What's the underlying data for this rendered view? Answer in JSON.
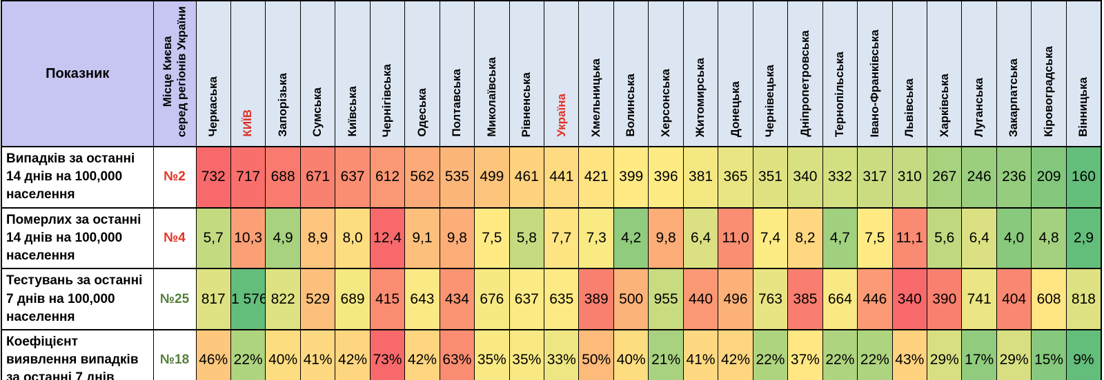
{
  "table": {
    "indicator_header": "Показник",
    "rank_header": "Місце Києва\nсеред регіонів України",
    "columns": [
      {
        "label": "Черкаська",
        "highlight": false
      },
      {
        "label": "КИЇВ",
        "highlight": true
      },
      {
        "label": "Запорізька",
        "highlight": false
      },
      {
        "label": "Сумська",
        "highlight": false
      },
      {
        "label": "Київська",
        "highlight": false
      },
      {
        "label": "Чернігівська",
        "highlight": false
      },
      {
        "label": "Одеська",
        "highlight": false
      },
      {
        "label": "Полтавська",
        "highlight": false
      },
      {
        "label": "Миколаївська",
        "highlight": false
      },
      {
        "label": "Рівненська",
        "highlight": false
      },
      {
        "label": "Україна",
        "highlight": true
      },
      {
        "label": "Хмельницька",
        "highlight": false
      },
      {
        "label": "Волинська",
        "highlight": false
      },
      {
        "label": "Херсонська",
        "highlight": false
      },
      {
        "label": "Житомирська",
        "highlight": false
      },
      {
        "label": "Донецька",
        "highlight": false
      },
      {
        "label": "Чернівецька",
        "highlight": false
      },
      {
        "label": "Дніпропетровська",
        "highlight": false
      },
      {
        "label": "Тернопільська",
        "highlight": false
      },
      {
        "label": "Івано-Франківська",
        "highlight": false
      },
      {
        "label": "Львівська",
        "highlight": false
      },
      {
        "label": "Харківська",
        "highlight": false
      },
      {
        "label": "Луганська",
        "highlight": false
      },
      {
        "label": "Закарпатська",
        "highlight": false
      },
      {
        "label": "Кіровоградська",
        "highlight": false
      },
      {
        "label": "Вінницька",
        "highlight": false
      }
    ],
    "rows": [
      {
        "label": "Випадків за останні 14 днів на 100,000 населення",
        "rank": "№2",
        "rank_color": "red",
        "scale": "high_is_red",
        "values": [
          "732",
          "717",
          "688",
          "671",
          "637",
          "612",
          "562",
          "535",
          "499",
          "461",
          "441",
          "421",
          "399",
          "396",
          "381",
          "365",
          "351",
          "340",
          "332",
          "317",
          "310",
          "267",
          "246",
          "236",
          "209",
          "160"
        ]
      },
      {
        "label": "Померлих за останні 14 днів на 100,000 населення",
        "rank": "№4",
        "rank_color": "red",
        "scale": "high_is_red",
        "values": [
          "5,7",
          "10,3",
          "4,9",
          "8,9",
          "8,0",
          "12,4",
          "9,1",
          "9,8",
          "7,5",
          "5,8",
          "7,7",
          "7,3",
          "4,2",
          "9,8",
          "6,4",
          "11,0",
          "7,4",
          "8,2",
          "4,7",
          "7,5",
          "11,1",
          "5,6",
          "6,4",
          "4,0",
          "4,8",
          "2,9"
        ]
      },
      {
        "label": "Тестувань за останні 7 днів на 100,000 населення",
        "rank": "№25",
        "rank_color": "green",
        "scale": "high_is_green",
        "values": [
          "817",
          "1 576",
          "822",
          "529",
          "689",
          "415",
          "643",
          "434",
          "676",
          "637",
          "635",
          "389",
          "500",
          "955",
          "440",
          "496",
          "763",
          "385",
          "664",
          "446",
          "340",
          "390",
          "741",
          "404",
          "608",
          "818"
        ]
      },
      {
        "label": "Коефіцієнт виявлення випадків за останні 7 днів",
        "rank": "№18",
        "rank_color": "green",
        "scale": "high_is_red",
        "values": [
          "46%",
          "22%",
          "40%",
          "41%",
          "42%",
          "73%",
          "42%",
          "63%",
          "35%",
          "35%",
          "33%",
          "50%",
          "40%",
          "21%",
          "41%",
          "42%",
          "22%",
          "37%",
          "22%",
          "22%",
          "43%",
          "29%",
          "17%",
          "29%",
          "15%",
          "9%"
        ]
      }
    ],
    "colors": {
      "header_lavender": "#c7c6f2",
      "header_blue": "#dce6f2",
      "highlight_text_red": "#e23126",
      "rank_red": "#e23126",
      "rank_green": "#567e3b",
      "heat_green": "#63BE7B",
      "heat_yellow": "#FFEB84",
      "heat_red": "#F8696B",
      "border": "#000000"
    }
  }
}
